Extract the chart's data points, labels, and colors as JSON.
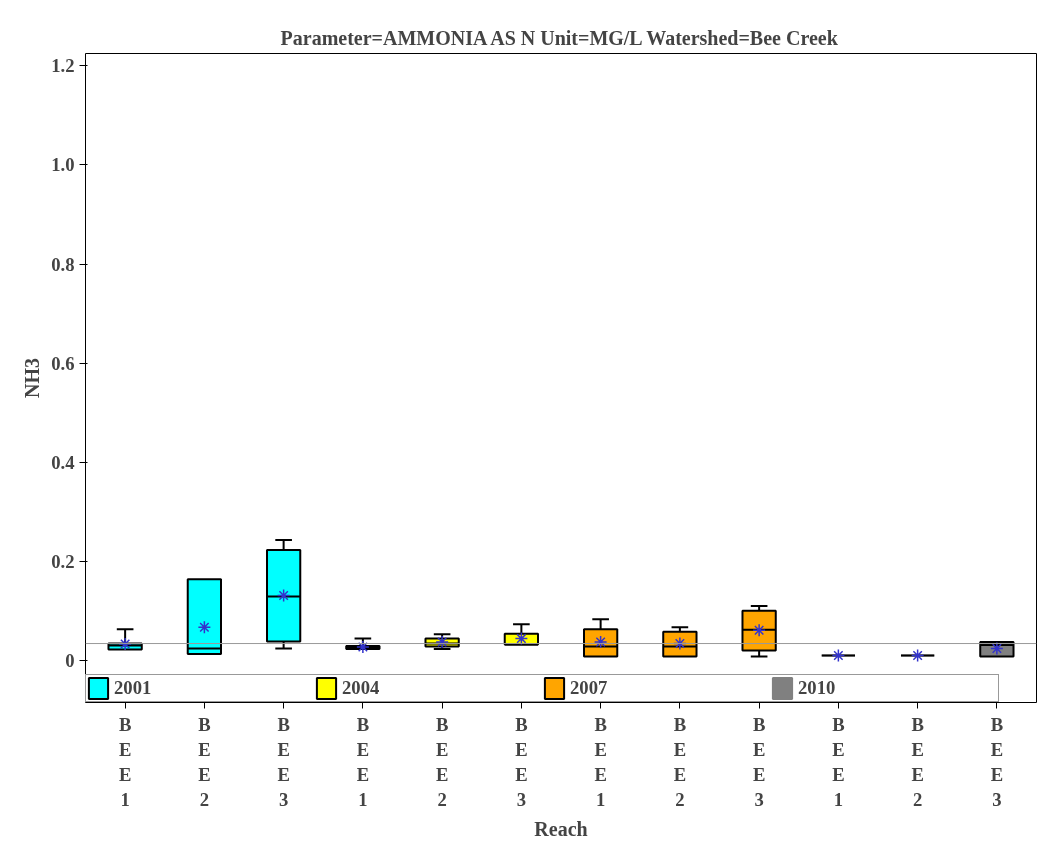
{
  "chart_data": {
    "type": "box",
    "title": "Parameter=AMMONIA AS N Unit=MG/L Watershed=Bee Creek",
    "xlabel": "Reach",
    "ylabel": "NH3",
    "categories": [
      "BEE1",
      "BEE2",
      "BEE3",
      "BEE1",
      "BEE2",
      "BEE3",
      "BEE1",
      "BEE2",
      "BEE3",
      "BEE1",
      "BEE2",
      "BEE3"
    ],
    "ylim": [
      -0.085,
      1.225
    ],
    "yticks": [
      0,
      0.2,
      0.4,
      0.6,
      0.8,
      {
        "value": 1,
        "label": "1.0"
      },
      1.2
    ],
    "grid": false,
    "legend": "bottom",
    "ref_lines": [
      {
        "axis": "y",
        "value": 0.034,
        "color": "#999999"
      }
    ],
    "series": [
      {
        "name": "2001",
        "color": "#00ffff",
        "boxes": [
          {
            "low": 0.022,
            "q1": 0.022,
            "median": 0.03,
            "q3": 0.034,
            "high": 0.063,
            "mean": 0.033
          },
          {
            "low": 0.013,
            "q1": 0.013,
            "median": 0.024,
            "q3": 0.164,
            "high": 0.164,
            "mean": 0.067
          },
          {
            "low": 0.024,
            "q1": 0.038,
            "median": 0.129,
            "q3": 0.223,
            "high": 0.243,
            "mean": 0.131
          },
          null,
          null,
          null,
          null,
          null,
          null,
          null,
          null,
          null
        ]
      },
      {
        "name": "2004",
        "color": "#ffff00",
        "boxes": [
          null,
          null,
          null,
          {
            "low": 0.023,
            "q1": 0.023,
            "median": 0.026,
            "q3": 0.029,
            "high": 0.044,
            "mean": 0.027
          },
          {
            "low": 0.023,
            "q1": 0.028,
            "median": 0.034,
            "q3": 0.044,
            "high": 0.053,
            "mean": 0.037
          },
          {
            "low": 0.032,
            "q1": 0.032,
            "median": 0.032,
            "q3": 0.054,
            "high": 0.073,
            "mean": 0.044
          },
          null,
          null,
          null,
          null,
          null,
          null
        ]
      },
      {
        "name": "2007",
        "color": "#ffa500",
        "boxes": [
          null,
          null,
          null,
          null,
          null,
          null,
          {
            "low": 0.008,
            "q1": 0.008,
            "median": 0.028,
            "q3": 0.063,
            "high": 0.083,
            "mean": 0.037
          },
          {
            "low": 0.008,
            "q1": 0.008,
            "median": 0.028,
            "q3": 0.058,
            "high": 0.067,
            "mean": 0.034
          },
          {
            "low": 0.008,
            "q1": 0.02,
            "median": 0.062,
            "q3": 0.1,
            "high": 0.11,
            "mean": 0.061
          },
          null,
          null,
          null
        ]
      },
      {
        "name": "2010",
        "color": "#808080",
        "boxes": [
          null,
          null,
          null,
          null,
          null,
          null,
          null,
          null,
          null,
          {
            "low": 0.01,
            "q1": 0.01,
            "median": 0.01,
            "q3": 0.01,
            "high": 0.01,
            "mean": 0.01
          },
          {
            "low": 0.01,
            "q1": 0.01,
            "median": 0.01,
            "q3": 0.01,
            "high": 0.01,
            "mean": 0.01
          },
          {
            "low": 0.008,
            "q1": 0.008,
            "median": 0.031,
            "q3": 0.037,
            "high": 0.037,
            "mean": 0.024
          }
        ]
      }
    ]
  }
}
